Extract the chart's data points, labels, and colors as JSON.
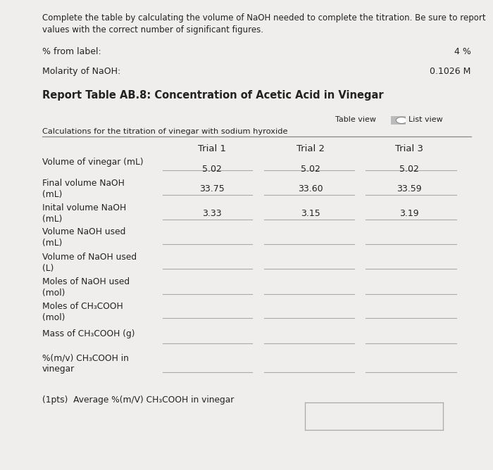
{
  "bg_color": "#f0eeec",
  "header_text": "Complete the table by calculating the volume of NaOH needed to complete the titration. Be sure to report\nvalues with the correct number of significant figures.",
  "label_from": "% from label:",
  "value_from": "4 %",
  "label_molarity": "Molarity of NaOH:",
  "value_molarity": "0.1026 M",
  "report_title": "Report Table AB.8: Concentration of Acetic Acid in Vinegar",
  "table_view_text": "Table view",
  "list_view_text": "List view",
  "subtitle": "Calculations for the titration of vinegar with sodium hyroxide",
  "col_headers": [
    "Trial 1",
    "Trial 2",
    "Trial 3"
  ],
  "row_labels": [
    "Volume of vinegar (mL)",
    "Final volume NaOH\n(mL)",
    "Inital volume NaOH\n(mL)",
    "Volume NaOH used\n(mL)",
    "Volume of NaOH used\n(L)",
    "Moles of NaOH used\n(mol)",
    "Moles of CH₃COOH\n(mol)",
    "Mass of CH₃COOH (g)",
    "%(m/v) CH₃COOH in\nvinegar"
  ],
  "data": [
    [
      "5.02",
      "5.02",
      "5.02"
    ],
    [
      "33.75",
      "33.60",
      "33.59"
    ],
    [
      "3.33",
      "3.15",
      "3.19"
    ],
    [
      "",
      "",
      ""
    ],
    [
      "",
      "",
      ""
    ],
    [
      "",
      "",
      ""
    ],
    [
      "",
      "",
      ""
    ],
    [
      "",
      "",
      ""
    ],
    [
      "",
      "",
      ""
    ]
  ],
  "footer_text": "(1pts)  Average %(m/V) CH₃COOH in vinegar",
  "text_color": "#222222",
  "line_color": "#aaaaaa",
  "header_fontsize": 8.5,
  "label_fontsize": 9.0,
  "title_fontsize": 10.5,
  "col_fontsize": 9.5,
  "row_fontsize": 8.8,
  "data_fontsize": 9.0
}
